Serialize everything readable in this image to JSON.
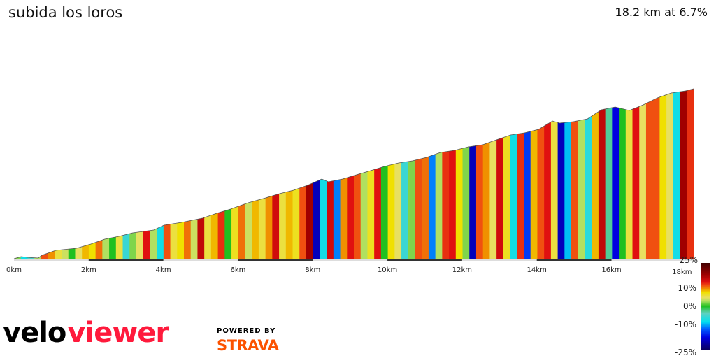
{
  "title": "subida los loros",
  "summary": "18.2 km at 6.7%",
  "brand": {
    "logo_part1": "velo",
    "logo_part2": "viewer",
    "powered_by": "POWERED BY",
    "strava": "STRAVA",
    "logo_colors": {
      "velo": "#000000",
      "viewer": "#ff1a3c",
      "strava": "#fc5200"
    }
  },
  "chart_data": {
    "type": "area",
    "title": "",
    "xlabel": "",
    "ylabel": "",
    "x_ticks": [
      "0km",
      "2km",
      "4km",
      "6km",
      "8km",
      "10km",
      "12km",
      "14km",
      "16km",
      "18km"
    ],
    "x_tick_values": [
      0,
      2,
      4,
      6,
      8,
      10,
      12,
      14,
      16,
      18
    ],
    "xlim": [
      0,
      18.2
    ],
    "profile": {
      "distance_km": [
        0,
        0.19,
        0.37,
        0.65,
        0.75,
        1.12,
        1.68,
        2.06,
        2.43,
        2.81,
        3.18,
        3.74,
        4.02,
        4.49,
        5.05,
        5.43,
        5.8,
        6.27,
        6.74,
        7.11,
        7.49,
        7.86,
        8.24,
        8.42,
        8.8,
        9.17,
        9.55,
        9.92,
        10.3,
        10.67,
        11.05,
        11.42,
        11.8,
        12.17,
        12.55,
        12.92,
        13.3,
        13.67,
        14.05,
        14.42,
        14.61,
        14.98,
        15.36,
        15.73,
        16.1,
        16.48,
        16.85,
        17.23,
        17.6,
        17.98,
        18.2
      ],
      "elevation_gain_m": [
        0,
        15,
        10,
        5,
        25,
        60,
        75,
        105,
        140,
        160,
        185,
        205,
        240,
        260,
        290,
        325,
        355,
        400,
        435,
        465,
        490,
        525,
        570,
        550,
        570,
        600,
        630,
        660,
        685,
        700,
        725,
        760,
        775,
        800,
        815,
        850,
        885,
        900,
        925,
        985,
        970,
        980,
        1000,
        1065,
        1085,
        1060,
        1100,
        1150,
        1185,
        1200,
        1215
      ]
    },
    "segment_km": 0.182,
    "gradient_pct": [
      2,
      -8,
      -5,
      3,
      12,
      10,
      6,
      4,
      0,
      5,
      9,
      8,
      11,
      3,
      0,
      6,
      -6,
      2,
      5,
      14,
      3,
      -8,
      12,
      6,
      8,
      11,
      4,
      16,
      6,
      9,
      13,
      0,
      7,
      11,
      4,
      9,
      6,
      10,
      15,
      6,
      9,
      7,
      12,
      18,
      -20,
      -8,
      15,
      -12,
      10,
      14,
      12,
      3,
      7,
      14,
      0,
      8,
      5,
      -6,
      2,
      12,
      11,
      -12,
      3,
      13,
      14,
      8,
      2,
      -20,
      12,
      10,
      5,
      15,
      7,
      -8,
      13,
      -15,
      9,
      12,
      14,
      6,
      -20,
      -10,
      12,
      3,
      -7,
      9,
      16,
      -3,
      -18,
      0,
      6,
      14,
      5,
      12,
      12,
      8,
      5,
      -8,
      18,
      13
    ],
    "color_scale": {
      "labels": [
        "25%",
        "10%",
        "0%",
        "-10%",
        "-25%"
      ],
      "values": [
        25,
        10,
        0,
        -10,
        -25
      ],
      "stops": [
        [
          -25,
          "#0a0060"
        ],
        [
          -18,
          "#0000e0"
        ],
        [
          -13,
          "#0060ff"
        ],
        [
          -9,
          "#00e0f0"
        ],
        [
          -4,
          "#60d0c0"
        ],
        [
          0,
          "#20c020"
        ],
        [
          3,
          "#b0e060"
        ],
        [
          5,
          "#e8e060"
        ],
        [
          8,
          "#f0e000"
        ],
        [
          10,
          "#f09000"
        ],
        [
          12,
          "#f05010"
        ],
        [
          14,
          "#e01010"
        ],
        [
          18,
          "#a00000"
        ],
        [
          25,
          "#400000"
        ]
      ]
    },
    "grid": false,
    "legend": "right"
  }
}
